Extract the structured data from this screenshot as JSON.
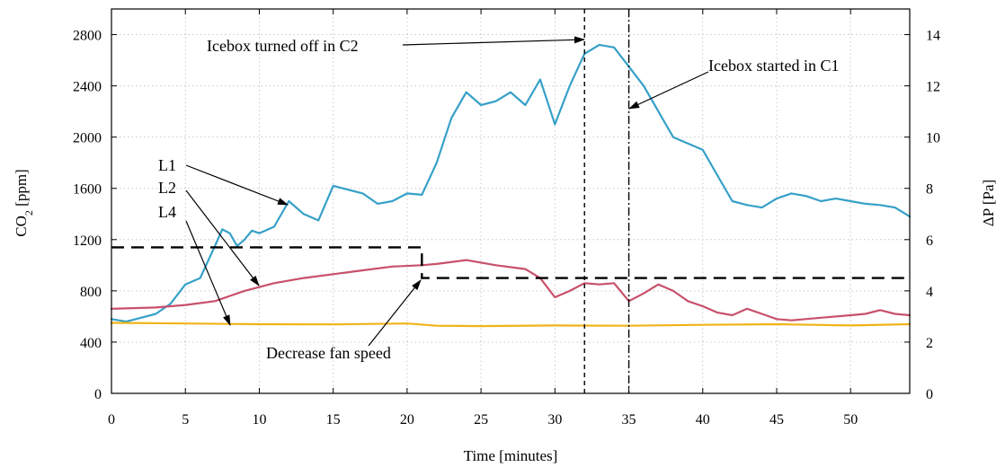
{
  "chart_data": {
    "type": "line",
    "xlabel": "Time [minutes]",
    "ylabel": "CO",
    "ylabel_sub": "2",
    "ylabel_unit": " [ppm]",
    "y2label": "ΔP [Pa]",
    "xlim": [
      0,
      54
    ],
    "ylim": [
      0,
      3000
    ],
    "y2lim": [
      0,
      15
    ],
    "xticks": [
      "0",
      "5",
      "10",
      "15",
      "20",
      "25",
      "30",
      "35",
      "40",
      "45",
      "50"
    ],
    "yticks": [
      "0",
      "400",
      "800",
      "1200",
      "1600",
      "2000",
      "2400",
      "2800"
    ],
    "y2ticks": [
      "0",
      "2",
      "4",
      "6",
      "8",
      "10",
      "12",
      "14"
    ],
    "grid": true,
    "series": [
      {
        "name": "L1",
        "color": "#36a0c8",
        "x": [
          0,
          1,
          2,
          3,
          4,
          5,
          6,
          7,
          7.5,
          8,
          8.5,
          9,
          9.5,
          10,
          11,
          12,
          13,
          14,
          15,
          16,
          17,
          18,
          19,
          20,
          21,
          22,
          23,
          24,
          25,
          26,
          27,
          28,
          29,
          30,
          31,
          32,
          33,
          34,
          35,
          36,
          37,
          38,
          39,
          40,
          41,
          42,
          43,
          44,
          45,
          46,
          47,
          48,
          49,
          50,
          51,
          52,
          53,
          54
        ],
        "y": [
          580,
          560,
          590,
          620,
          700,
          850,
          900,
          1150,
          1280,
          1250,
          1150,
          1200,
          1270,
          1250,
          1300,
          1500,
          1400,
          1350,
          1620,
          1590,
          1560,
          1480,
          1500,
          1560,
          1550,
          1800,
          2150,
          2350,
          2250,
          2280,
          2350,
          2250,
          2450,
          2100,
          2400,
          2650,
          2720,
          2700,
          2550,
          2400,
          2200,
          2000,
          1950,
          1900,
          1700,
          1500,
          1470,
          1450,
          1520,
          1560,
          1540,
          1500,
          1520,
          1500,
          1480,
          1470,
          1450,
          1380
        ]
      },
      {
        "name": "L2",
        "color": "#c8506a",
        "x": [
          0,
          3,
          5,
          7,
          9,
          11,
          13,
          15,
          17,
          19,
          21,
          22,
          24,
          26,
          28,
          29,
          30,
          31,
          32,
          33,
          34,
          35,
          36,
          37,
          38,
          39,
          40,
          41,
          42,
          43,
          44,
          45,
          46,
          48,
          50,
          51,
          52,
          53,
          54
        ],
        "y": [
          660,
          670,
          690,
          720,
          800,
          860,
          900,
          930,
          960,
          990,
          1000,
          1010,
          1040,
          1000,
          970,
          900,
          750,
          800,
          860,
          850,
          860,
          720,
          780,
          850,
          800,
          720,
          680,
          630,
          610,
          660,
          620,
          580,
          570,
          590,
          610,
          620,
          650,
          620,
          610
        ]
      },
      {
        "name": "L4",
        "color": "#f0b418",
        "x": [
          0,
          5,
          10,
          15,
          20,
          22,
          25,
          30,
          35,
          40,
          45,
          50,
          54
        ],
        "y": [
          550,
          545,
          540,
          538,
          545,
          528,
          525,
          530,
          528,
          535,
          540,
          530,
          540
        ]
      }
    ],
    "dp_dashed": {
      "x": [
        0,
        21,
        21,
        54
      ],
      "y": [
        5.7,
        5.7,
        4.5,
        4.5
      ]
    },
    "vlines": [
      32,
      35
    ],
    "annotations": [
      {
        "text": "Icebox turned off in C2"
      },
      {
        "text": "Icebox started in C1"
      },
      {
        "text": "L1"
      },
      {
        "text": "L2"
      },
      {
        "text": "L4"
      },
      {
        "text": "Decrease fan speed"
      }
    ]
  }
}
